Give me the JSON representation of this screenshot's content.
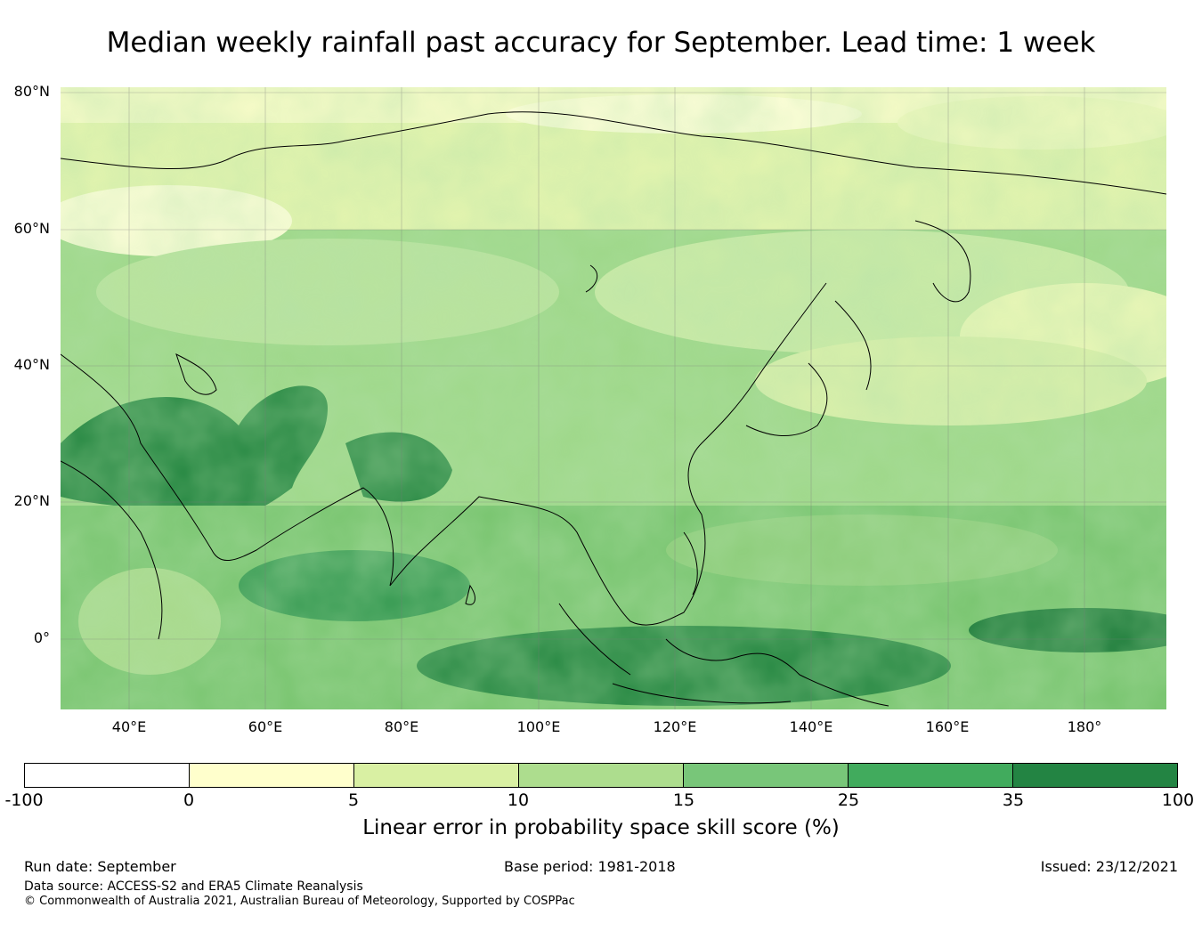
{
  "title": "Median weekly rainfall past accuracy for September. Lead time: 1 week",
  "map": {
    "lat_labels": [
      "80°N",
      "60°N",
      "40°N",
      "20°N",
      "0°"
    ],
    "lon_labels": [
      "40°E",
      "60°E",
      "80°E",
      "100°E",
      "120°E",
      "140°E",
      "160°E",
      "180°"
    ]
  },
  "colorbar": {
    "ticks": [
      "-100",
      "0",
      "5",
      "10",
      "15",
      "25",
      "35",
      "100"
    ],
    "colors": [
      "#ffffff",
      "#ffffcc",
      "#d9f0a3",
      "#addd8e",
      "#78c679",
      "#41ab5d",
      "#238443"
    ],
    "label": "Linear error in probability space skill score (%)"
  },
  "footer": {
    "run_date": "Run date: September",
    "base_period": "Base period: 1981-2018",
    "issued": "Issued: 23/12/2021",
    "data_source": "Data source: ACCESS-S2 and ERA5 Climate Reanalysis",
    "copyright": "© Commonwealth of Australia 2021, Australian Bureau of Meteorology, Supported by COSPPac"
  }
}
